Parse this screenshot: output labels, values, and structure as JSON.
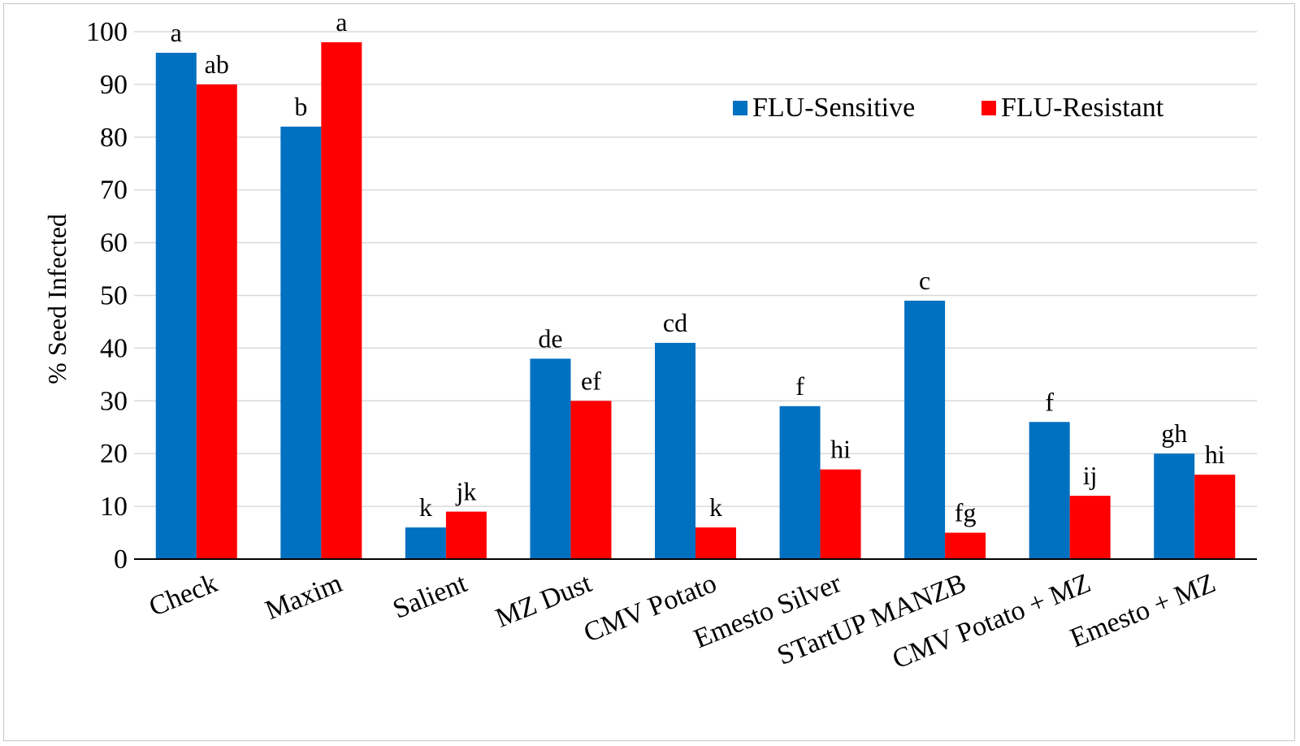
{
  "chart_data": {
    "type": "bar",
    "title": "",
    "xlabel": "",
    "ylabel": "% Seed Infected",
    "ylim": [
      0,
      100
    ],
    "yticks": [
      "0",
      "10",
      "20",
      "30",
      "40",
      "50",
      "60",
      "70",
      "80",
      "90",
      "100"
    ],
    "grid": "horizontal",
    "legend_position": "top-right",
    "categories": [
      "Check",
      "Maxim",
      "Salient",
      "MZ Dust",
      "CMV Potato",
      "Emesto Silver",
      "STartUP MANZB",
      "CMV Potato + MZ",
      "Emesto + MZ"
    ],
    "series": [
      {
        "name": "FLU-Sensitive",
        "color": "#0070c0",
        "values": [
          96,
          82,
          6,
          38,
          41,
          29,
          49,
          26,
          20
        ],
        "labels": [
          "a",
          "b",
          "k",
          "de",
          "cd",
          "f",
          "c",
          "f",
          "gh"
        ]
      },
      {
        "name": "FLU-Resistant",
        "color": "#ff0000",
        "values": [
          90,
          98,
          9,
          30,
          6,
          17,
          5,
          12,
          16
        ],
        "labels": [
          "ab",
          "a",
          "jk",
          "ef",
          "k",
          "hi",
          "fg",
          "ij",
          "hi"
        ]
      }
    ]
  }
}
